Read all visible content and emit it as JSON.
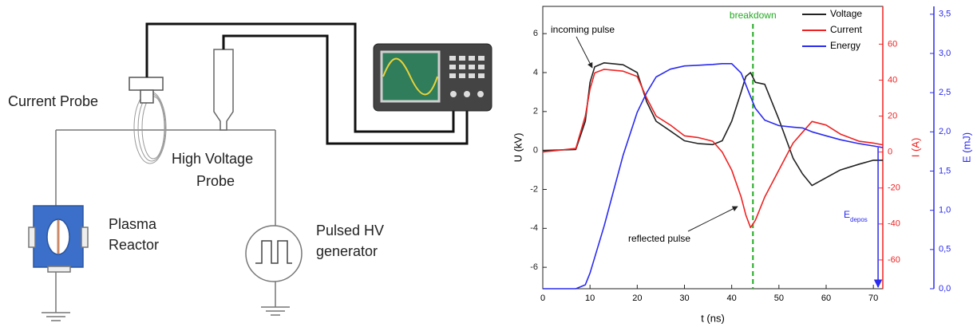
{
  "diagram": {
    "current_probe": "Current Probe",
    "hv_probe": [
      "High Voltage",
      "Probe"
    ],
    "reactor": [
      "Plasma",
      "Reactor"
    ],
    "generator": [
      "Pulsed HV",
      "generator"
    ]
  },
  "chart_data": {
    "type": "line",
    "xlabel": "t (ns)",
    "ylabel": "U (kV)",
    "y2label": "I (A)",
    "y3label": "E (mJ)",
    "xlim": [
      0,
      72
    ],
    "xticks": [
      0,
      10,
      20,
      30,
      40,
      50,
      60,
      70
    ],
    "ylim": [
      -7.1,
      7.4
    ],
    "yticks": [
      -6,
      -4,
      -2,
      0,
      2,
      4,
      6
    ],
    "y2lim": [
      -76,
      81
    ],
    "y2ticks": [
      -60,
      -40,
      -20,
      0,
      20,
      40,
      60
    ],
    "y3lim": [
      0,
      3.6
    ],
    "y3ticks": [
      {
        "value": 0,
        "label": "0,0"
      },
      {
        "value": 0.5,
        "label": "0,5"
      },
      {
        "value": 1,
        "label": "1,0"
      },
      {
        "value": 1.5,
        "label": "1,5"
      },
      {
        "value": 2,
        "label": "2,0"
      },
      {
        "value": 2.5,
        "label": "2,5"
      },
      {
        "value": 3,
        "label": "3,0"
      },
      {
        "value": 3.5,
        "label": "3,5"
      }
    ],
    "legend": "upper right",
    "x": [
      0,
      7,
      9,
      10,
      11,
      13,
      17,
      20,
      22,
      24,
      27,
      30,
      33,
      36,
      38,
      40,
      42,
      43,
      44,
      45,
      47,
      50,
      53,
      55,
      57,
      60,
      63,
      67,
      70,
      72
    ],
    "series": [
      {
        "name": "Voltage",
        "color": "#222222",
        "axis": "y",
        "values": [
          0,
          0.05,
          1.5,
          3.5,
          4.3,
          4.5,
          4.4,
          4.0,
          2.5,
          1.5,
          1.0,
          0.5,
          0.35,
          0.3,
          0.5,
          1.5,
          3.0,
          3.8,
          4.0,
          3.5,
          3.4,
          1.6,
          -0.4,
          -1.2,
          -1.8,
          -1.4,
          -1.0,
          -0.7,
          -0.5,
          -0.5
        ]
      },
      {
        "name": "Current",
        "color": "#ee2222",
        "axis": "y2",
        "values": [
          0,
          2,
          20,
          35,
          44,
          46,
          45,
          42,
          30,
          20,
          15,
          9,
          8,
          6,
          0,
          -10,
          -25,
          -35,
          -42,
          -38,
          -25,
          -10,
          5,
          11,
          17,
          15,
          10,
          6,
          5,
          4
        ]
      },
      {
        "name": "Energy",
        "color": "#2a2af0",
        "axis": "y3",
        "values": [
          0,
          0,
          0.05,
          0.2,
          0.4,
          0.8,
          1.7,
          2.25,
          2.5,
          2.7,
          2.8,
          2.84,
          2.85,
          2.86,
          2.87,
          2.87,
          2.75,
          2.6,
          2.45,
          2.3,
          2.15,
          2.08,
          2.06,
          2.05,
          2.0,
          1.95,
          1.9,
          1.85,
          1.82,
          1.8
        ]
      }
    ],
    "breakdown": {
      "label": "breakdown",
      "x": 44.5,
      "color": "#22aa22"
    },
    "annotations": {
      "incoming": "incoming pulse",
      "reflected": "reflected pulse",
      "edepos": {
        "text": "E",
        "sub": "depos",
        "x": 71
      }
    }
  }
}
